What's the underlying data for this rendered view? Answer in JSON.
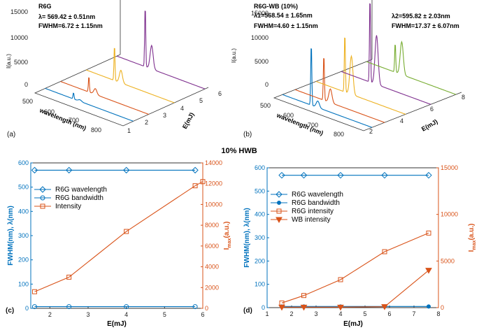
{
  "figure": {
    "middle_title": "10% HWB"
  },
  "chart_data": [
    {
      "id": "a",
      "type": "line",
      "projection": "3d-waterfall",
      "panel_label": "(a)",
      "title": "R6G",
      "annotations": [
        "λ=  569.42 ± 0.51nm",
        "FWHM=6.72 ± 1.15nm"
      ],
      "zlabel": "I(a.u.)",
      "xlabel": "wavelength (nm)",
      "ylabel": "E(mJ)",
      "z_ticks": [
        "0",
        "5000",
        "10000",
        "15000"
      ],
      "x_ticks": [
        "500",
        "600",
        "700",
        "800"
      ],
      "y_ticks": [
        "1",
        "2",
        "3",
        "4",
        "5",
        "6"
      ],
      "zlim": [
        0,
        16000
      ],
      "xlim": [
        450,
        820
      ],
      "ylim": [
        1,
        6
      ],
      "series": [
        {
          "energy": 1.6,
          "color": "#0072BD",
          "peak_wavelength": 569,
          "peak": 1200,
          "shoulder": 300
        },
        {
          "energy": 2.5,
          "color": "#D95319",
          "peak_wavelength": 569,
          "peak": 3000,
          "shoulder": 1100
        },
        {
          "energy": 4.0,
          "color": "#EDB120",
          "peak_wavelength": 569,
          "peak": 6800,
          "shoulder": 2400
        },
        {
          "energy": 5.8,
          "color": "#7E2F8E",
          "peak_wavelength": 569,
          "peak": 11800,
          "shoulder": 4500
        }
      ]
    },
    {
      "id": "b",
      "type": "line",
      "projection": "3d-waterfall",
      "panel_label": "(b)",
      "title": "R6G-WB  (10%)",
      "annotations": [
        "λ1=568.54 ± 1.65nm",
        "FWHM=4.60 ± 1.15nm",
        "λ2=595.82 ± 2.03nm",
        "FWHM=17.37 ± 6.07nm"
      ],
      "zlabel": "I(a.u.)",
      "xlabel": "wavelength (nm)",
      "ylabel": "E(mJ)",
      "z_ticks": [
        "0",
        "5000",
        "10000",
        "15000"
      ],
      "x_ticks": [
        "500",
        "600",
        "700",
        "800"
      ],
      "y_ticks": [
        "2",
        "4",
        "6",
        "8"
      ],
      "zlim": [
        0,
        16000
      ],
      "xlim": [
        450,
        820
      ],
      "ylim": [
        1,
        8
      ],
      "series": [
        {
          "energy": 1.6,
          "color": "#0072BD",
          "peak_wavelength": 569,
          "peak": 11500,
          "shoulder": 1200
        },
        {
          "energy": 2.5,
          "color": "#D95319",
          "peak_wavelength": 569,
          "peak": 8500,
          "shoulder": 2500
        },
        {
          "energy": 4.0,
          "color": "#EDB120",
          "peak_wavelength": 569,
          "peak": 11000,
          "shoulder": 7000
        },
        {
          "energy": 5.8,
          "color": "#7E2F8E",
          "peak_wavelength": 569,
          "peak": 16000,
          "shoulder": 9000
        },
        {
          "energy": 7.6,
          "color": "#77AC30",
          "peak_wavelength": 569,
          "peak": 5500,
          "shoulder": 6000
        }
      ]
    },
    {
      "id": "c",
      "type": "line",
      "panel_label": "(c)",
      "xlabel": "E(mJ)",
      "ylabel_left": "FWHM(nm),  λ(nm)",
      "ylabel_right_main": "I",
      "ylabel_right_sub": "max",
      "ylabel_right_rest": "(a.u.)",
      "xlim": [
        1.5,
        6
      ],
      "ylim_left": [
        0,
        600
      ],
      "ylim_right": [
        0,
        14000
      ],
      "x_ticks": [
        2,
        3,
        4,
        5,
        6
      ],
      "y_ticks_left": [
        0,
        100,
        200,
        300,
        400,
        500,
        600
      ],
      "y_ticks_right": [
        0,
        2000,
        4000,
        6000,
        8000,
        10000,
        12000,
        14000
      ],
      "legend_position": "upper-left",
      "series": [
        {
          "name": "R6G wavelength",
          "axis": "left",
          "marker": "diamond",
          "color": "#0072BD",
          "x": [
            1.6,
            2.5,
            4.0,
            5.8
          ],
          "y": [
            570,
            570,
            570,
            570
          ]
        },
        {
          "name": "R6G bandwidth",
          "axis": "left",
          "marker": "circle",
          "color": "#0072BD",
          "x": [
            1.6,
            2.5,
            4.0,
            5.8
          ],
          "y": [
            7,
            7,
            7,
            7
          ]
        },
        {
          "name": "Intensity",
          "axis": "right",
          "marker": "square",
          "color": "#D95319",
          "x": [
            1.6,
            2.5,
            4.0,
            5.8,
            6.0
          ],
          "y": [
            1600,
            3000,
            7400,
            11800,
            12200
          ]
        }
      ]
    },
    {
      "id": "d",
      "type": "line",
      "panel_label": "(d)",
      "xlabel": "E(mJ)",
      "ylabel_left": "FWHM(nm),  λ(nm)",
      "ylabel_right_main": "I",
      "ylabel_right_sub": "max",
      "ylabel_right_rest": "(a.u.)",
      "xlim": [
        1,
        8
      ],
      "ylim_left": [
        0,
        600
      ],
      "ylim_right": [
        0,
        15000
      ],
      "x_ticks": [
        1,
        2,
        3,
        4,
        5,
        6,
        7,
        8
      ],
      "y_ticks_left": [
        0,
        100,
        200,
        300,
        400,
        500,
        600
      ],
      "y_ticks_right": [
        0,
        5000,
        10000,
        15000
      ],
      "legend_position": "upper-left",
      "series": [
        {
          "name": "R6G wavelength",
          "axis": "left",
          "marker": "diamond",
          "color": "#0072BD",
          "x": [
            1.6,
            2.5,
            4.0,
            5.8,
            7.6
          ],
          "y": [
            568,
            568,
            568,
            568,
            568
          ]
        },
        {
          "name": "R6G bandwidth",
          "axis": "left",
          "marker": "dot",
          "color": "#0072BD",
          "x": [
            1.6,
            2.5,
            4.0,
            5.8,
            7.6
          ],
          "y": [
            5,
            5,
            5,
            5,
            5
          ]
        },
        {
          "name": "R6G intensity",
          "axis": "right",
          "marker": "square",
          "color": "#D95319",
          "x": [
            1.6,
            2.5,
            4.0,
            5.8,
            7.6
          ],
          "y": [
            500,
            1300,
            3000,
            6000,
            8000
          ]
        },
        {
          "name": "WB intensity",
          "axis": "right",
          "marker": "triangle-down",
          "color": "#D95319",
          "x": [
            1.6,
            2.5,
            4.0,
            5.8,
            7.6
          ],
          "y": [
            50,
            50,
            50,
            100,
            4000
          ]
        }
      ]
    }
  ]
}
